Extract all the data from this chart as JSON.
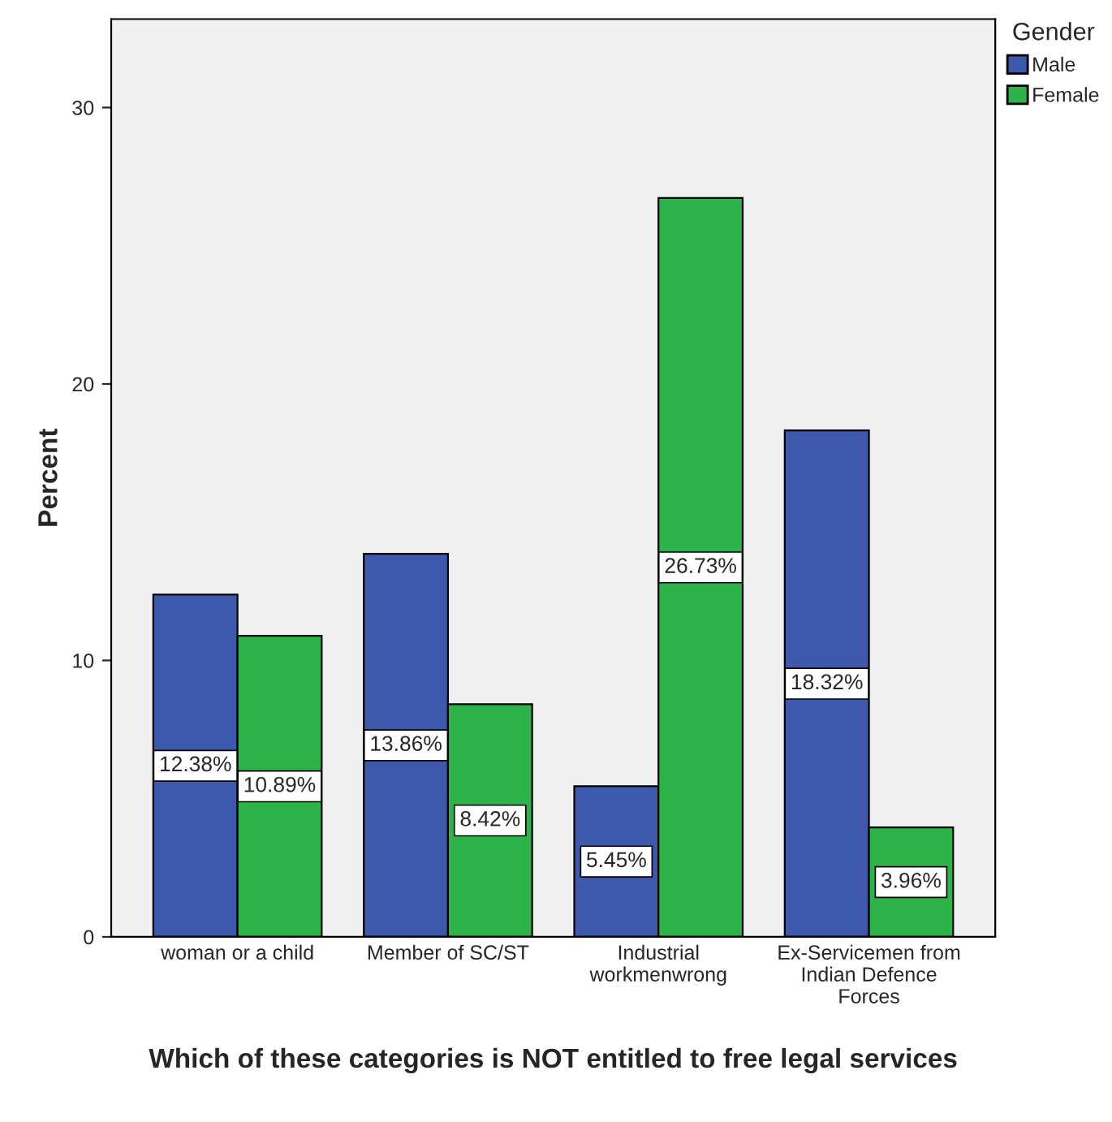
{
  "chart_data": {
    "type": "bar",
    "xlabel": "Which of these categories is NOT entitled to free legal services",
    "ylabel": "Percent",
    "legend_title": "Gender",
    "legend": "top right",
    "grid": false,
    "categories": [
      "woman or a child",
      "Member of SC/ST",
      "Industrial\nworkmenwrong",
      "Ex-Servicemen from\nIndian Defence\nForces"
    ],
    "ylim": [
      0,
      33.2
    ],
    "yticks": [
      0,
      10,
      20,
      30
    ],
    "series": [
      {
        "name": "Male",
        "color": "#3e58ac",
        "values": [
          12.38,
          13.86,
          5.45,
          18.32
        ],
        "value_labels": [
          "12.38%",
          "13.86%",
          "5.45%",
          "18.32%"
        ]
      },
      {
        "name": "Female",
        "color": "#2eb34a",
        "values": [
          10.89,
          8.42,
          26.73,
          3.96
        ],
        "value_labels": [
          "10.89%",
          "8.42%",
          "26.73%",
          "3.96%"
        ]
      }
    ]
  }
}
